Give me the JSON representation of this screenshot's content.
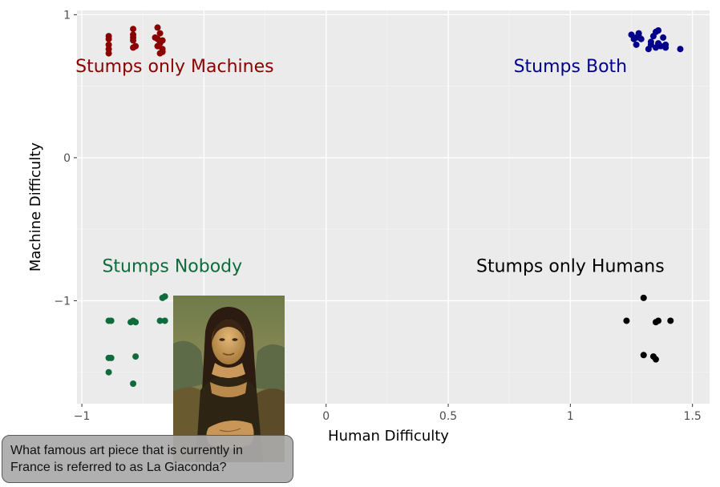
{
  "chart_data": {
    "type": "scatter",
    "title": "",
    "xlabel": "Human Difficulty",
    "ylabel": "Machine Difficulty",
    "xlim": [
      -1.02,
      1.57
    ],
    "ylim": [
      -1.72,
      1.03
    ],
    "x_ticks": [
      -1,
      -0.5,
      0,
      0.5,
      1,
      1.5
    ],
    "x_tick_labels": [
      "−1",
      "−0.5",
      "0",
      "0.5",
      "1",
      "1.5"
    ],
    "y_ticks": [
      -1,
      0,
      1
    ],
    "y_tick_labels": [
      "−1",
      "0",
      "1"
    ],
    "grid": true,
    "background": "#EBEBEB",
    "legend": "none",
    "series": [
      {
        "name": "Stumps only Machines",
        "color": "#8B0000",
        "label_pos": [
          -0.62,
          0.6
        ],
        "points": [
          [
            -0.89,
            0.85
          ],
          [
            -0.89,
            0.83
          ],
          [
            -0.89,
            0.79
          ],
          [
            -0.89,
            0.76
          ],
          [
            -0.89,
            0.73
          ],
          [
            -0.79,
            0.9
          ],
          [
            -0.79,
            0.86
          ],
          [
            -0.79,
            0.84
          ],
          [
            -0.79,
            0.82
          ],
          [
            -0.78,
            0.78
          ],
          [
            -0.79,
            0.77
          ],
          [
            -0.69,
            0.91
          ],
          [
            -0.68,
            0.87
          ],
          [
            -0.7,
            0.84
          ],
          [
            -0.69,
            0.83
          ],
          [
            -0.67,
            0.82
          ],
          [
            -0.68,
            0.8
          ],
          [
            -0.69,
            0.78
          ],
          [
            -0.67,
            0.76
          ],
          [
            -0.67,
            0.74
          ],
          [
            -0.68,
            0.73
          ]
        ]
      },
      {
        "name": "Stumps Both",
        "color": "#00008B",
        "label_pos": [
          1.0,
          0.6
        ],
        "points": [
          [
            1.25,
            0.86
          ],
          [
            1.26,
            0.83
          ],
          [
            1.27,
            0.84
          ],
          [
            1.28,
            0.87
          ],
          [
            1.28,
            0.85
          ],
          [
            1.29,
            0.83
          ],
          [
            1.27,
            0.79
          ],
          [
            1.36,
            0.89
          ],
          [
            1.35,
            0.88
          ],
          [
            1.34,
            0.85
          ],
          [
            1.38,
            0.84
          ],
          [
            1.33,
            0.81
          ],
          [
            1.36,
            0.8
          ],
          [
            1.33,
            0.79
          ],
          [
            1.37,
            0.78
          ],
          [
            1.39,
            0.79
          ],
          [
            1.35,
            0.77
          ],
          [
            1.32,
            0.76
          ],
          [
            1.39,
            0.77
          ],
          [
            1.45,
            0.76
          ]
        ]
      },
      {
        "name": "Stumps Nobody",
        "color": "#0E6B3C",
        "label_pos": [
          -0.63,
          -0.8
        ],
        "points": [
          [
            -0.89,
            -1.14
          ],
          [
            -0.88,
            -1.14
          ],
          [
            -0.79,
            -1.14
          ],
          [
            -0.78,
            -1.15
          ],
          [
            -0.8,
            -1.15
          ],
          [
            -0.67,
            -0.98
          ],
          [
            -0.66,
            -0.97
          ],
          [
            -0.68,
            -1.14
          ],
          [
            -0.66,
            -1.14
          ],
          [
            -0.89,
            -1.4
          ],
          [
            -0.88,
            -1.4
          ],
          [
            -0.78,
            -1.39
          ],
          [
            -0.89,
            -1.5
          ],
          [
            -0.79,
            -1.58
          ]
        ]
      },
      {
        "name": "Stumps only Humans",
        "color": "#000000",
        "label_pos": [
          1.0,
          -0.8
        ],
        "points": [
          [
            1.3,
            -0.98
          ],
          [
            1.23,
            -1.14
          ],
          [
            1.35,
            -1.15
          ],
          [
            1.36,
            -1.14
          ],
          [
            1.41,
            -1.14
          ],
          [
            1.3,
            -1.38
          ],
          [
            1.34,
            -1.39
          ],
          [
            1.35,
            -1.41
          ]
        ]
      }
    ]
  },
  "question": {
    "text": "What famous art piece that is currently in France is referred to as La Giaconda?"
  },
  "image": {
    "name": "mona-lisa-painting"
  }
}
